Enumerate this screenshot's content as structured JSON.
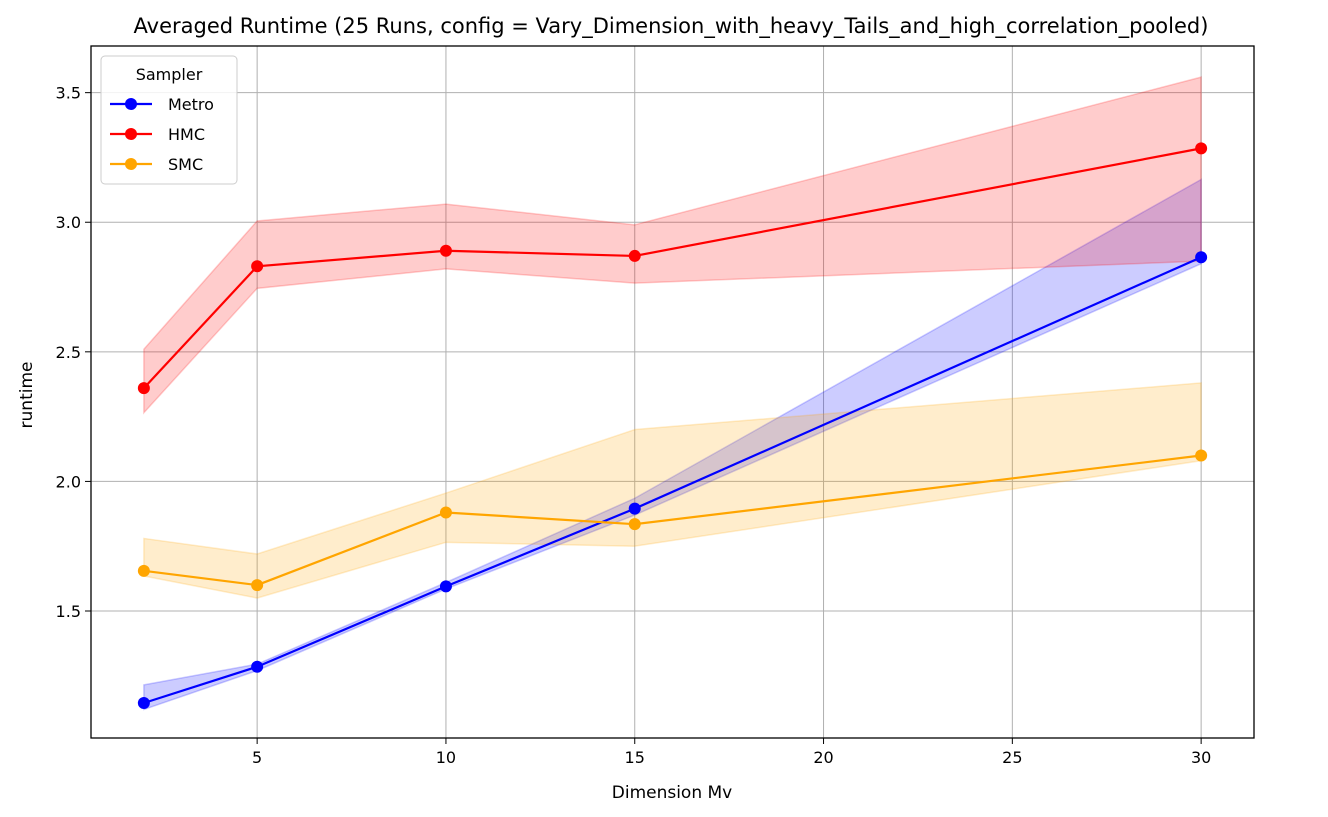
{
  "chart_data": {
    "type": "line",
    "title": "Averaged Runtime (25 Runs, config = Vary_Dimension_with_heavy_Tails_and_high_correlation_pooled)",
    "xlabel": "Dimension Mv",
    "ylabel": "runtime",
    "x": [
      2,
      5,
      10,
      15,
      30
    ],
    "xticks": [
      5,
      10,
      15,
      20,
      25,
      30
    ],
    "yticks": [
      1.5,
      2.0,
      2.5,
      3.0,
      3.5
    ],
    "xtick_labels": [
      "5",
      "10",
      "15",
      "20",
      "25",
      "30"
    ],
    "ytick_labels": [
      "1.5",
      "2.0",
      "2.5",
      "3.0",
      "3.5"
    ],
    "xlim": [
      0.6,
      31.4
    ],
    "ylim": [
      1.01,
      3.68
    ],
    "grid": true,
    "legend": {
      "title": "Sampler",
      "placement": "top-left"
    },
    "series": [
      {
        "name": "Metro",
        "color": "#0000ff",
        "fill_color": "#0000ff",
        "values": [
          1.145,
          1.285,
          1.595,
          1.895,
          2.865
        ],
        "lower": [
          1.12,
          1.27,
          1.585,
          1.87,
          2.84
        ],
        "upper": [
          1.215,
          1.295,
          1.61,
          1.935,
          3.165
        ]
      },
      {
        "name": "HMC",
        "color": "#ff0000",
        "fill_color": "#ff0000",
        "values": [
          2.36,
          2.83,
          2.89,
          2.87,
          3.285
        ],
        "lower": [
          2.265,
          2.745,
          2.82,
          2.765,
          2.85
        ],
        "upper": [
          2.51,
          3.005,
          3.07,
          2.99,
          3.56
        ]
      },
      {
        "name": "SMC",
        "color": "#ffa500",
        "fill_color": "#ffa500",
        "values": [
          1.655,
          1.6,
          1.88,
          1.835,
          2.1
        ],
        "lower": [
          1.635,
          1.55,
          1.765,
          1.75,
          2.08
        ],
        "upper": [
          1.78,
          1.72,
          1.955,
          2.2,
          2.38
        ]
      }
    ]
  }
}
